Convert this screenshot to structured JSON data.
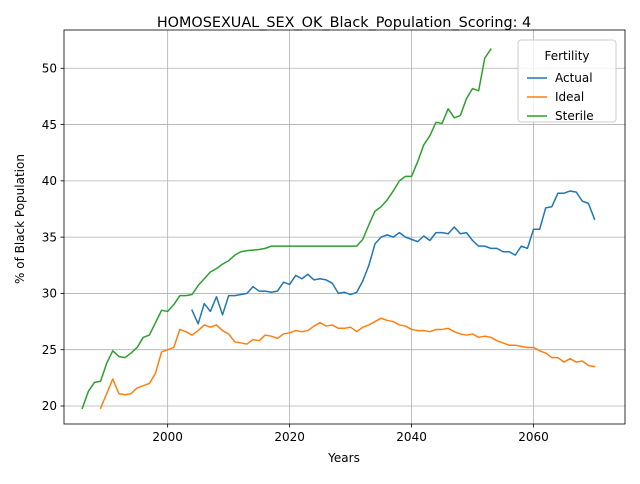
{
  "chart_data": {
    "type": "line",
    "title": "HOMOSEXUAL_SEX_OK_Black_Population_Scoring: 4",
    "xlabel": "Years",
    "ylabel": "% of Black Population",
    "xlim": [
      1983,
      2075
    ],
    "ylim": [
      18.4,
      53.4
    ],
    "xticks": [
      2000,
      2020,
      2040,
      2060
    ],
    "yticks": [
      20,
      25,
      30,
      35,
      40,
      45,
      50
    ],
    "grid": true,
    "legend": {
      "title": "Fertility",
      "placement": "top-right"
    },
    "series": [
      {
        "name": "Actual",
        "color": "#1f77b4",
        "x": [
          2004,
          2005,
          2006,
          2007,
          2008,
          2009,
          2010,
          2011,
          2012,
          2013,
          2014,
          2015,
          2016,
          2017,
          2018,
          2019,
          2020,
          2021,
          2022,
          2023,
          2024,
          2025,
          2026,
          2027,
          2028,
          2029,
          2030,
          2031,
          2032,
          2033,
          2034,
          2035,
          2036,
          2037,
          2038,
          2039,
          2040,
          2041,
          2042,
          2043,
          2044,
          2045,
          2046,
          2047,
          2048,
          2049,
          2050,
          2051,
          2052,
          2053,
          2054,
          2055,
          2056,
          2057,
          2058,
          2059,
          2060,
          2061,
          2062,
          2063,
          2064,
          2065,
          2066,
          2067,
          2068,
          2069,
          2070
        ],
        "y": [
          28.5,
          27.3,
          29.1,
          28.4,
          29.7,
          28.1,
          29.8,
          29.8,
          29.9,
          30.0,
          30.6,
          30.2,
          30.2,
          30.1,
          30.2,
          31.0,
          30.8,
          31.6,
          31.3,
          31.7,
          31.2,
          31.3,
          31.2,
          30.9,
          30.0,
          30.1,
          29.9,
          30.1,
          31.1,
          32.5,
          34.4,
          35.0,
          35.2,
          35.0,
          35.4,
          35.0,
          34.8,
          34.6,
          35.1,
          34.7,
          35.4,
          35.4,
          35.3,
          35.9,
          35.3,
          35.4,
          34.7,
          34.2,
          34.2,
          34.0,
          34.0,
          33.7,
          33.7,
          33.4,
          34.2,
          34.0,
          35.7,
          35.7,
          37.6,
          37.7,
          38.9,
          38.9,
          39.1,
          39.0,
          38.2,
          38.0,
          36.6
        ]
      },
      {
        "name": "Ideal",
        "color": "#ff7f0e",
        "x": [
          1989,
          1990,
          1991,
          1992,
          1993,
          1994,
          1995,
          1996,
          1997,
          1998,
          1999,
          2000,
          2001,
          2002,
          2003,
          2004,
          2005,
          2006,
          2007,
          2008,
          2009,
          2010,
          2011,
          2012,
          2013,
          2014,
          2015,
          2016,
          2017,
          2018,
          2019,
          2020,
          2021,
          2022,
          2023,
          2024,
          2025,
          2026,
          2027,
          2028,
          2029,
          2030,
          2031,
          2032,
          2033,
          2034,
          2035,
          2036,
          2037,
          2038,
          2039,
          2040,
          2041,
          2042,
          2043,
          2044,
          2045,
          2046,
          2047,
          2048,
          2049,
          2050,
          2051,
          2052,
          2053,
          2054,
          2055,
          2056,
          2057,
          2058,
          2059,
          2060,
          2061,
          2062,
          2063,
          2064,
          2065,
          2066,
          2067,
          2068,
          2069,
          2070
        ],
        "y": [
          19.8,
          21.1,
          22.4,
          21.1,
          21.0,
          21.1,
          21.6,
          21.8,
          22.0,
          22.9,
          24.8,
          25.0,
          25.2,
          26.8,
          26.6,
          26.3,
          26.7,
          27.2,
          27.0,
          27.2,
          26.7,
          26.4,
          25.7,
          25.6,
          25.5,
          25.9,
          25.8,
          26.3,
          26.2,
          26.0,
          26.4,
          26.5,
          26.7,
          26.6,
          26.7,
          27.1,
          27.4,
          27.1,
          27.2,
          26.9,
          26.9,
          27.0,
          26.6,
          27.0,
          27.2,
          27.5,
          27.8,
          27.6,
          27.5,
          27.2,
          27.1,
          26.8,
          26.7,
          26.7,
          26.6,
          26.8,
          26.8,
          26.9,
          26.6,
          26.4,
          26.3,
          26.4,
          26.1,
          26.2,
          26.1,
          25.8,
          25.6,
          25.4,
          25.4,
          25.3,
          25.2,
          25.2,
          24.9,
          24.7,
          24.3,
          24.3,
          23.9,
          24.2,
          23.9,
          24.0,
          23.6,
          23.5
        ]
      },
      {
        "name": "Sterile",
        "color": "#2ca02c",
        "x": [
          1986,
          1987,
          1988,
          1989,
          1990,
          1991,
          1992,
          1993,
          1994,
          1995,
          1996,
          1997,
          1998,
          1999,
          2000,
          2001,
          2002,
          2003,
          2004,
          2005,
          2006,
          2007,
          2008,
          2009,
          2010,
          2011,
          2012,
          2013,
          2014,
          2015,
          2016,
          2017,
          2018,
          2019,
          2020,
          2021,
          2022,
          2023,
          2024,
          2025,
          2026,
          2027,
          2028,
          2029,
          2030,
          2031,
          2032,
          2033,
          2034,
          2035,
          2036,
          2037,
          2038,
          2039,
          2040,
          2041,
          2042,
          2043,
          2044,
          2045,
          2046,
          2047,
          2048,
          2049,
          2050,
          2051,
          2052,
          2053
        ],
        "y": [
          19.8,
          21.3,
          22.1,
          22.2,
          23.8,
          24.9,
          24.4,
          24.3,
          24.7,
          25.2,
          26.1,
          26.3,
          27.4,
          28.5,
          28.4,
          29.0,
          29.8,
          29.8,
          29.9,
          30.7,
          31.3,
          31.9,
          32.2,
          32.6,
          32.9,
          33.4,
          33.7,
          33.8,
          33.85,
          33.9,
          34.0,
          34.2,
          34.2,
          34.2,
          34.2,
          34.2,
          34.2,
          34.2,
          34.2,
          34.2,
          34.2,
          34.2,
          34.2,
          34.2,
          34.2,
          34.2,
          34.8,
          36.1,
          37.3,
          37.7,
          38.3,
          39.1,
          40.0,
          40.4,
          40.4,
          41.7,
          43.2,
          44.0,
          45.2,
          45.1,
          46.4,
          45.6,
          45.8,
          47.3,
          48.2,
          48.0,
          50.9,
          51.7
        ]
      }
    ]
  }
}
